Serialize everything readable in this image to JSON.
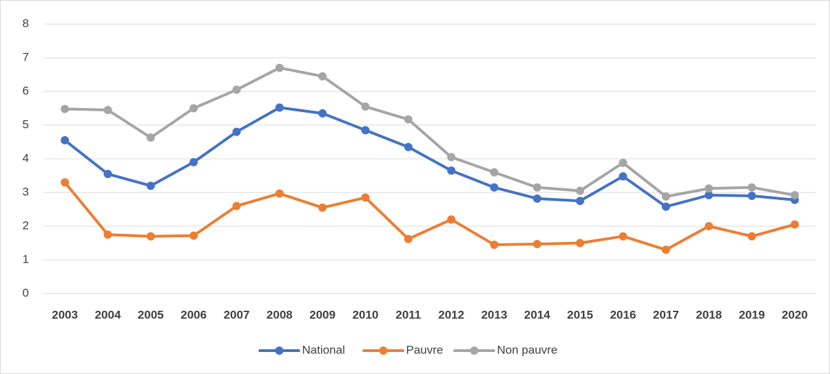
{
  "chart_data": {
    "type": "line",
    "categories": [
      "2003",
      "2004",
      "2005",
      "2006",
      "2007",
      "2008",
      "2009",
      "2010",
      "2011",
      "2012",
      "2013",
      "2014",
      "2015",
      "2016",
      "2017",
      "2018",
      "2019",
      "2020"
    ],
    "series": [
      {
        "name": "National",
        "color": "#4472c4",
        "values": [
          4.55,
          3.55,
          3.2,
          3.9,
          4.8,
          5.52,
          5.35,
          4.85,
          4.35,
          3.65,
          3.15,
          2.82,
          2.75,
          3.48,
          2.58,
          2.92,
          2.9,
          2.78
        ]
      },
      {
        "name": "Pauvre",
        "color": "#ed7d31",
        "values": [
          3.3,
          1.75,
          1.7,
          1.72,
          2.6,
          2.97,
          2.55,
          2.85,
          1.62,
          2.2,
          1.45,
          1.47,
          1.5,
          1.7,
          1.3,
          2.0,
          1.7,
          2.05
        ]
      },
      {
        "name": "Non pauvre",
        "color": "#a5a5a5",
        "values": [
          5.48,
          5.45,
          4.63,
          5.5,
          6.05,
          6.7,
          6.45,
          5.55,
          5.17,
          4.05,
          3.6,
          3.15,
          3.05,
          3.88,
          2.88,
          3.12,
          3.15,
          2.92
        ]
      }
    ],
    "ylim": [
      0,
      8
    ],
    "yticks": [
      0,
      1,
      2,
      3,
      4,
      5,
      6,
      7,
      8
    ],
    "grid": true,
    "legend": "bottom"
  }
}
